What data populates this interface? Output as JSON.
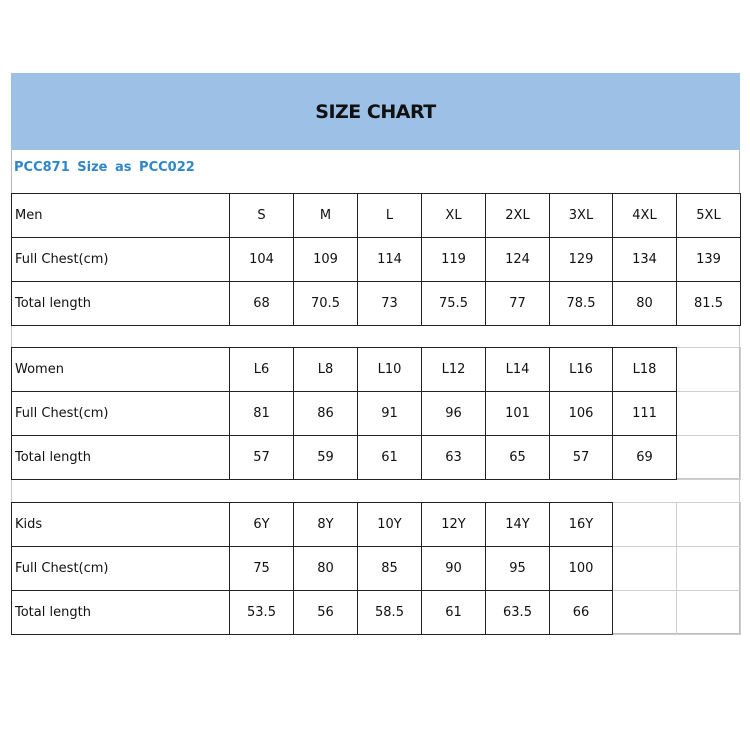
{
  "title": "SIZE CHART",
  "subtitle": "PCC871 Size  as  PCC022",
  "colors": {
    "header_band": "#9dc1e6",
    "subtitle": "#2f87c9"
  },
  "sections": [
    {
      "name": "men",
      "rows": [
        {
          "label": "Men",
          "values": [
            "S",
            "M",
            "L",
            "XL",
            "2XL",
            "3XL",
            "4XL",
            "5XL"
          ]
        },
        {
          "label": "Full Chest(cm)",
          "values": [
            "104",
            "109",
            "114",
            "119",
            "124",
            "129",
            "134",
            "139"
          ]
        },
        {
          "label": "Total length",
          "values": [
            "68",
            "70.5",
            "73",
            "75.5",
            "77",
            "78.5",
            "80",
            "81.5"
          ]
        }
      ]
    },
    {
      "name": "women",
      "rows": [
        {
          "label": "Women",
          "values": [
            "L6",
            "L8",
            "L10",
            "L12",
            "L14",
            "L16",
            "L18"
          ]
        },
        {
          "label": "Full Chest(cm)",
          "values": [
            "81",
            "86",
            "91",
            "96",
            "101",
            "106",
            "111"
          ]
        },
        {
          "label": "Total length",
          "values": [
            "57",
            "59",
            "61",
            "63",
            "65",
            "57",
            "69"
          ]
        }
      ]
    },
    {
      "name": "kids",
      "rows": [
        {
          "label": "Kids",
          "values": [
            "6Y",
            "8Y",
            "10Y",
            "12Y",
            "14Y",
            "16Y"
          ]
        },
        {
          "label": "Full Chest(cm)",
          "values": [
            "75",
            "80",
            "85",
            "90",
            "95",
            "100"
          ]
        },
        {
          "label": "Total length",
          "values": [
            "53.5",
            "56",
            "58.5",
            "61",
            "63.5",
            "66"
          ]
        }
      ]
    }
  ]
}
